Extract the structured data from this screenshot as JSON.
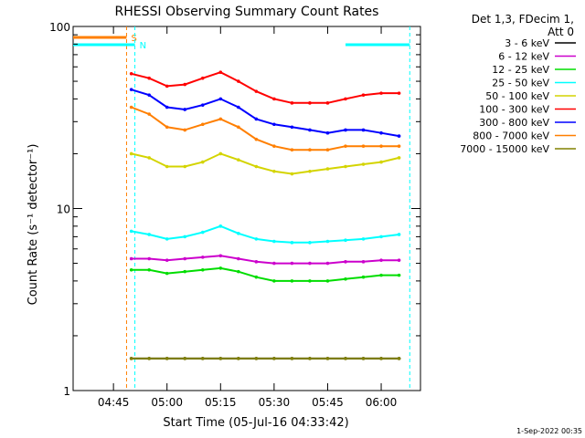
{
  "chart_data": {
    "type": "line",
    "title": "RHESSI Observing Summary Count Rates",
    "xlabel": "Start Time (05-Jul-16 04:33:42)",
    "ylabel": "Count Rate (s⁻¹ detector⁻¹)",
    "y_scale": "log",
    "ylim": [
      1,
      100
    ],
    "y_ticks": [
      {
        "value": 1,
        "label": "1"
      },
      {
        "value": 10,
        "label": "10"
      },
      {
        "value": 100,
        "label": "100"
      }
    ],
    "xlim": [
      "04:33:42",
      "06:11:00"
    ],
    "x_ticks": [
      {
        "value": "04:45",
        "label": "04:45"
      },
      {
        "value": "05:00",
        "label": "05:00"
      },
      {
        "value": "05:15",
        "label": "05:15"
      },
      {
        "value": "05:30",
        "label": "05:30"
      },
      {
        "value": "05:45",
        "label": "05:45"
      },
      {
        "value": "06:00",
        "label": "06:00"
      }
    ],
    "legend_position": "right",
    "legend_header": [
      "Det 1,3, FDecim 1,",
      "Att 0"
    ],
    "x": [
      "04:50",
      "04:55",
      "05:00",
      "05:05",
      "05:10",
      "05:15",
      "05:20",
      "05:25",
      "05:30",
      "05:35",
      "05:40",
      "05:45",
      "05:50",
      "05:55",
      "06:00",
      "06:05"
    ],
    "series": [
      {
        "name": "3 - 6 keV",
        "color": "#000000",
        "values": [
          1.5,
          1.5,
          1.5,
          1.5,
          1.5,
          1.5,
          1.5,
          1.5,
          1.5,
          1.5,
          1.5,
          1.5,
          1.5,
          1.5,
          1.5,
          1.5
        ]
      },
      {
        "name": "6 - 12 keV",
        "color": "#cc00cc",
        "values": [
          5.3,
          5.3,
          5.2,
          5.3,
          5.4,
          5.5,
          5.3,
          5.1,
          5.0,
          5.0,
          5.0,
          5.0,
          5.1,
          5.1,
          5.2,
          5.2
        ]
      },
      {
        "name": "12 - 25 keV",
        "color": "#00dd00",
        "values": [
          4.6,
          4.6,
          4.4,
          4.5,
          4.6,
          4.7,
          4.5,
          4.2,
          4.0,
          4.0,
          4.0,
          4.0,
          4.1,
          4.2,
          4.3,
          4.3
        ]
      },
      {
        "name": "25 - 50 keV",
        "color": "#00ffff",
        "values": [
          7.5,
          7.2,
          6.8,
          7.0,
          7.4,
          8.0,
          7.3,
          6.8,
          6.6,
          6.5,
          6.5,
          6.6,
          6.7,
          6.8,
          7.0,
          7.2
        ]
      },
      {
        "name": "50 - 100 keV",
        "color": "#d4d400",
        "values": [
          20,
          19,
          17,
          17,
          18,
          20,
          18.5,
          17,
          16,
          15.5,
          16,
          16.5,
          17,
          17.5,
          18,
          19
        ]
      },
      {
        "name": "100 - 300 keV",
        "color": "#ff0000",
        "values": [
          55,
          52,
          47,
          48,
          52,
          56,
          50,
          44,
          40,
          38,
          38,
          38,
          40,
          42,
          43,
          43
        ]
      },
      {
        "name": "300 - 800 keV",
        "color": "#0000ff",
        "values": [
          45,
          42,
          36,
          35,
          37,
          40,
          36,
          31,
          29,
          28,
          27,
          26,
          27,
          27,
          26,
          25
        ]
      },
      {
        "name": "800 - 7000 keV",
        "color": "#ff7f00",
        "values": [
          36,
          33,
          28,
          27,
          29,
          31,
          28,
          24,
          22,
          21,
          21,
          21,
          22,
          22,
          22,
          22
        ]
      },
      {
        "name": "7000 - 15000 keV",
        "color": "#808000",
        "values": [
          1.5,
          1.5,
          1.5,
          1.5,
          1.5,
          1.5,
          1.5,
          1.5,
          1.5,
          1.5,
          1.5,
          1.5,
          1.5,
          1.5,
          1.5,
          1.5
        ]
      }
    ],
    "flags": [
      {
        "label": "S",
        "color": "#ff7f00",
        "x_start": "04:33:42",
        "x_end": "04:48:40"
      },
      {
        "label": "N",
        "color": "#00ffff",
        "x_start": "04:33:42",
        "x_end": "04:51:00"
      },
      {
        "label": "",
        "color": "#00ffff",
        "x_start": "05:50:00",
        "x_end": "06:08:00"
      }
    ],
    "footer_date": "1-Sep-2022 00:35"
  }
}
